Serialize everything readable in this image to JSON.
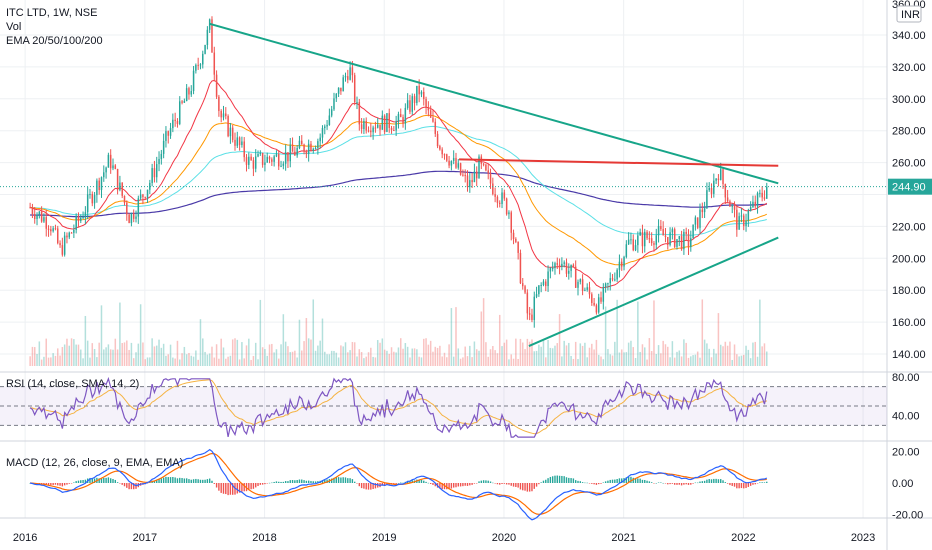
{
  "header": {
    "symbol_line": "ITC LTD, 1W, NSE",
    "vol_label": "Vol",
    "ema_label": "EMA 20/50/100/200"
  },
  "price_axis": {
    "currency": "INR",
    "top_label": "360.00",
    "last_price": "244.90",
    "tick_labels": [
      "340.00",
      "320.00",
      "300.00",
      "280.00",
      "260.00",
      "240.00",
      "220.00",
      "200.00",
      "180.00",
      "160.00",
      "140.00"
    ]
  },
  "rsi_panel": {
    "label": "RSI (14, close, SMA, 14, 2)",
    "tick_labels": [
      "80.00",
      "40.00"
    ]
  },
  "macd_panel": {
    "label": "MACD (12, 26, close, 9, EMA, EMA)",
    "tick_labels": [
      "20.00",
      "0.00",
      "-20.00"
    ]
  },
  "time_axis": {
    "labels": [
      "2016",
      "2017",
      "2018",
      "2019",
      "2020",
      "2021",
      "2022",
      "2023"
    ]
  },
  "colors": {
    "up": "#26a69a",
    "down": "#ef5350",
    "ema20": "#f23645",
    "ema50": "#ff9800",
    "ema100": "#5be0e6",
    "ema200": "#4a3aa8",
    "trendline": "#17a589",
    "resistance": "#e53935",
    "rsi": "#7e57c2",
    "rsi_ma": "#f5b342",
    "macd": "#2962ff",
    "signal": "#ff6d00"
  },
  "chart_data": {
    "type": "candlestick",
    "timeframe": "1W",
    "x_range": [
      "2016-01",
      "2022-03"
    ],
    "price_ylim": [
      135,
      362
    ],
    "price_path_weekly_close_approx": [
      {
        "date": "2016-01",
        "close": 232
      },
      {
        "date": "2016-03",
        "close": 222
      },
      {
        "date": "2016-04",
        "close": 205
      },
      {
        "date": "2016-06",
        "close": 225
      },
      {
        "date": "2016-09",
        "close": 262
      },
      {
        "date": "2016-11",
        "close": 225
      },
      {
        "date": "2017-01",
        "close": 248
      },
      {
        "date": "2017-03",
        "close": 280
      },
      {
        "date": "2017-05",
        "close": 305
      },
      {
        "date": "2017-07",
        "close": 345
      },
      {
        "date": "2017-08",
        "close": 290
      },
      {
        "date": "2017-11",
        "close": 260
      },
      {
        "date": "2018-03",
        "close": 265
      },
      {
        "date": "2018-06",
        "close": 275
      },
      {
        "date": "2018-09",
        "close": 320
      },
      {
        "date": "2018-10",
        "close": 285
      },
      {
        "date": "2019-02",
        "close": 285
      },
      {
        "date": "2019-04",
        "close": 305
      },
      {
        "date": "2019-06",
        "close": 272
      },
      {
        "date": "2019-09",
        "close": 245
      },
      {
        "date": "2019-10",
        "close": 258
      },
      {
        "date": "2020-01",
        "close": 230
      },
      {
        "date": "2020-03",
        "close": 160
      },
      {
        "date": "2020-04",
        "close": 180
      },
      {
        "date": "2020-06",
        "close": 200
      },
      {
        "date": "2020-10",
        "close": 170
      },
      {
        "date": "2021-01",
        "close": 210
      },
      {
        "date": "2021-04",
        "close": 215
      },
      {
        "date": "2021-07",
        "close": 210
      },
      {
        "date": "2021-10",
        "close": 255
      },
      {
        "date": "2021-12",
        "close": 220
      },
      {
        "date": "2022-03",
        "close": 244.9
      }
    ],
    "annotations": [
      {
        "kind": "descending trendline",
        "from": {
          "date": "2017-07",
          "price": 347
        },
        "to": {
          "date": "2022-04",
          "price": 247
        }
      },
      {
        "kind": "horizontal resistance",
        "from": {
          "date": "2019-08",
          "price": 262
        },
        "to": {
          "date": "2022-04",
          "price": 258
        }
      },
      {
        "kind": "ascending trendline",
        "from": {
          "date": "2020-03",
          "price": 145
        },
        "to": {
          "date": "2022-04",
          "price": 213
        }
      }
    ],
    "rsi_ylim": [
      15,
      85
    ],
    "rsi_bands": [
      70,
      30
    ],
    "macd_ylim": [
      -25,
      25
    ],
    "grid": true
  }
}
